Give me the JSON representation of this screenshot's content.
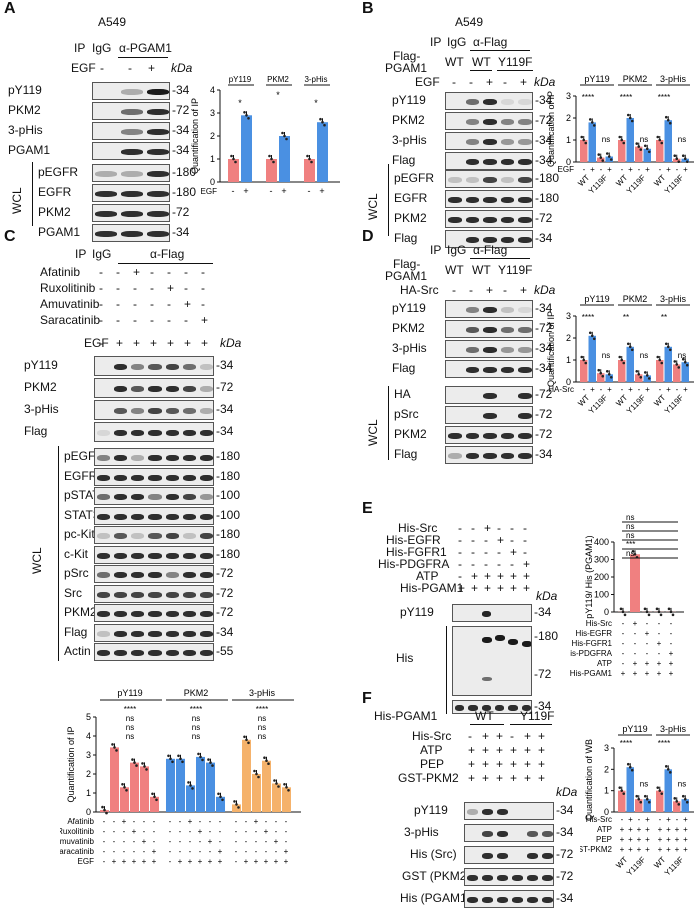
{
  "panels": {
    "A": "A",
    "B": "B",
    "C": "C",
    "D": "D",
    "E": "E",
    "F": "F"
  },
  "colors": {
    "red": "#f08080",
    "blue": "#4a90e2",
    "orange": "#f5b26b",
    "dot": "#222"
  },
  "panelA": {
    "cell": "A549",
    "ip": "IP",
    "igg": "IgG",
    "ab": "α-PGAM1",
    "egf": "EGF",
    "minus": "-",
    "plus": "+",
    "kda": "kDa",
    "wcl": "WCL",
    "rows": [
      {
        "label": "pY119",
        "kda": "-34"
      },
      {
        "label": "PKM2",
        "kda": "-72"
      },
      {
        "label": "3-pHis",
        "kda": "-34"
      },
      {
        "label": "PGAM1",
        "kda": "-34"
      }
    ],
    "wclrows": [
      {
        "label": "pEGFR",
        "kda": "-180"
      },
      {
        "label": "EGFR",
        "kda": "-180"
      },
      {
        "label": "PKM2",
        "kda": "-72"
      },
      {
        "label": "PGAM1",
        "kda": "-34"
      }
    ]
  },
  "panelB": {
    "cell": "A549",
    "ip": "IP",
    "igg": "IgG",
    "ab": "α-Flag",
    "flag": "Flag-",
    "pgam1": "PGAM1",
    "wt": "WT",
    "y119f": "Y119F",
    "egf": "EGF",
    "kda": "kDa",
    "wcl": "WCL",
    "rows": [
      {
        "label": "pY119",
        "kda": "-34"
      },
      {
        "label": "PKM2",
        "kda": "-72"
      },
      {
        "label": "3-pHis",
        "kda": "-34"
      },
      {
        "label": "Flag",
        "kda": "-34"
      }
    ],
    "wclrows": [
      {
        "label": "pEGFR",
        "kda": "-180"
      },
      {
        "label": "EGFR",
        "kda": "-180"
      },
      {
        "label": "PKM2",
        "kda": "-72"
      },
      {
        "label": "Flag",
        "kda": "-34"
      }
    ]
  },
  "panelC": {
    "ip": "IP",
    "igg": "IgG",
    "ab": "α-Flag",
    "kda": "kDa",
    "wcl": "WCL",
    "treatments": [
      "Afatinib",
      "Ruxolitinib",
      "Amuvatinib",
      "Saracatinib",
      "EGF"
    ],
    "rows": [
      {
        "label": "pY119",
        "kda": "-34"
      },
      {
        "label": "PKM2",
        "kda": "-72"
      },
      {
        "label": "3-pHis",
        "kda": "-34"
      },
      {
        "label": "Flag",
        "kda": "-34"
      }
    ],
    "wclrows": [
      {
        "label": "pEGFR",
        "kda": "-180"
      },
      {
        "label": "EGFR",
        "kda": "-180"
      },
      {
        "label": "pSTAT3",
        "kda": "-100"
      },
      {
        "label": "STAT3",
        "kda": "-100"
      },
      {
        "label": "pc-Kit",
        "kda": "-180"
      },
      {
        "label": "c-Kit",
        "kda": "-180"
      },
      {
        "label": "pSrc",
        "kda": "-72"
      },
      {
        "label": "Src",
        "kda": "-72"
      },
      {
        "label": "PKM2",
        "kda": "-72"
      },
      {
        "label": "Flag",
        "kda": "-34"
      },
      {
        "label": "Actin",
        "kda": "-55"
      }
    ]
  },
  "panelD": {
    "ip": "IP",
    "igg": "IgG",
    "ab": "α-Flag",
    "flag": "Flag-",
    "pgam1": "PGAM1",
    "wt": "WT",
    "y119f": "Y119F",
    "hasrc": "HA-Src",
    "kda": "kDa",
    "wcl": "WCL",
    "rows": [
      {
        "label": "pY119",
        "kda": "-34"
      },
      {
        "label": "PKM2",
        "kda": "-72"
      },
      {
        "label": "3-pHis",
        "kda": "-34"
      },
      {
        "label": "Flag",
        "kda": "-34"
      }
    ],
    "wclrows": [
      {
        "label": "HA",
        "kda": "-72"
      },
      {
        "label": "pSrc",
        "kda": "-72"
      },
      {
        "label": "PKM2",
        "kda": "-72"
      },
      {
        "label": "Flag",
        "kda": "-34"
      }
    ]
  },
  "panelE": {
    "kda": "kDa",
    "treatments": [
      "His-Src",
      "His-EGFR",
      "His-FGFR1",
      "His-PDGFRA",
      "ATP",
      "His-PGAM1"
    ],
    "rows": [
      {
        "label": "pY119",
        "kda": "-34"
      },
      {
        "label": "His",
        "kda": "-180"
      }
    ],
    "extra_kda": [
      "-72",
      "-34"
    ]
  },
  "panelF": {
    "kda": "kDa",
    "wt": "WT",
    "y119f": "Y119F",
    "treatments": [
      "His-PGAM1",
      "His-Src",
      "ATP",
      "PEP",
      "GST-PKM2"
    ],
    "rows": [
      {
        "label": "pY119",
        "kda": "-34"
      },
      {
        "label": "3-pHis",
        "kda": "-34"
      },
      {
        "label": "His (Src)",
        "kda": "-72"
      },
      {
        "label": "GST (PKM2)",
        "kda": "-72"
      },
      {
        "label": "His (PGAM1)",
        "kda": "-34"
      }
    ]
  },
  "chart_data": [
    {
      "id": "A",
      "type": "bar",
      "ylabel": "Quantification of IP",
      "ylim": [
        0,
        4
      ],
      "yticks": [
        0,
        1,
        2,
        3,
        4
      ],
      "groups": [
        "pY119",
        "PKM2",
        "3-pHis"
      ],
      "xrow": {
        "label": "EGF",
        "ticks": [
          "-",
          "+"
        ]
      },
      "values": [
        [
          1,
          2.9
        ],
        [
          1,
          2.0
        ],
        [
          1,
          2.6
        ]
      ],
      "sig": [
        "*",
        "*",
        "*"
      ]
    },
    {
      "id": "B",
      "type": "bar",
      "ylabel": "Quantification of IP",
      "ylim": [
        0,
        3
      ],
      "yticks": [
        0,
        1,
        2,
        3
      ],
      "groups": [
        "pY119",
        "PKM2",
        "3-pHis"
      ],
      "categories": [
        "WT",
        "Y119F"
      ],
      "xrow": {
        "label": "EGF",
        "ticks": [
          "-",
          "+",
          "-",
          "+"
        ]
      },
      "values": [
        [
          1,
          1.8,
          0.2,
          0.25
        ],
        [
          1,
          2.0,
          0.7,
          0.6
        ],
        [
          1,
          1.9,
          0.15,
          0.15
        ]
      ],
      "sig": [
        [
          "****",
          "ns"
        ],
        [
          "****",
          "ns"
        ],
        [
          "****",
          "ns"
        ]
      ]
    },
    {
      "id": "C",
      "type": "bar",
      "ylabel": "Quantification of IP",
      "ylim": [
        0,
        5
      ],
      "yticks": [
        0,
        1,
        2,
        3,
        4,
        5
      ],
      "groups": [
        "pY119",
        "PKM2",
        "3-pHis"
      ],
      "rows": [
        "Afatinib",
        "Ruxolitinib",
        "Amuvatinib",
        "Saracatinib",
        "EGF"
      ],
      "values": [
        [
          0.1,
          3.4,
          1.3,
          2.6,
          2.4,
          0.8
        ],
        [
          2.8,
          2.8,
          1.4,
          2.9,
          2.6,
          0.8
        ],
        [
          0.4,
          3.8,
          2.0,
          2.7,
          1.5,
          1.3
        ]
      ]
    },
    {
      "id": "D",
      "type": "bar",
      "ylabel": "Quantification of IP",
      "ylim": [
        0,
        3
      ],
      "yticks": [
        0,
        1,
        2,
        3
      ],
      "groups": [
        "pY119",
        "PKM2",
        "3-pHis"
      ],
      "categories": [
        "WT",
        "Y119F"
      ],
      "xrow": {
        "label": "HA-Src",
        "ticks": [
          "-",
          "+",
          "-",
          "+"
        ]
      },
      "values": [
        [
          1,
          2.1,
          0.4,
          0.35
        ],
        [
          1,
          1.6,
          0.35,
          0.3
        ],
        [
          1,
          1.6,
          0.8,
          0.9
        ]
      ],
      "sig": [
        [
          "****",
          "ns"
        ],
        [
          "**",
          "ns"
        ],
        [
          "**",
          "ns"
        ]
      ]
    },
    {
      "id": "E",
      "type": "bar",
      "ylabel": "pY119/ His (PGAM1)",
      "ylim": [
        0,
        400
      ],
      "yticks": [
        0,
        100,
        200,
        300,
        400
      ],
      "values": [
        1,
        330,
        1,
        1,
        1
      ],
      "sig": [
        "ns",
        "ns",
        "ns",
        "***",
        "ns"
      ],
      "rows": [
        "His-Src",
        "His-EGFR",
        "His-FGFR1",
        "His-PDGFRA",
        "ATP",
        "His-PGAM1"
      ]
    },
    {
      "id": "F",
      "type": "bar",
      "ylabel": "Quantification of WB",
      "ylim": [
        0,
        3
      ],
      "yticks": [
        0,
        1,
        2,
        3
      ],
      "groups": [
        "pY119",
        "3-pHis"
      ],
      "categories": [
        "WT",
        "Y119F"
      ],
      "rows": [
        "His-Src",
        "ATP",
        "PEP",
        "GST-PKM2"
      ],
      "values": [
        [
          1,
          2.1,
          0.6,
          0.6
        ],
        [
          1,
          2.0,
          0.5,
          0.6
        ]
      ],
      "sig": [
        [
          "****",
          "ns"
        ],
        [
          "****",
          "ns"
        ]
      ]
    }
  ]
}
